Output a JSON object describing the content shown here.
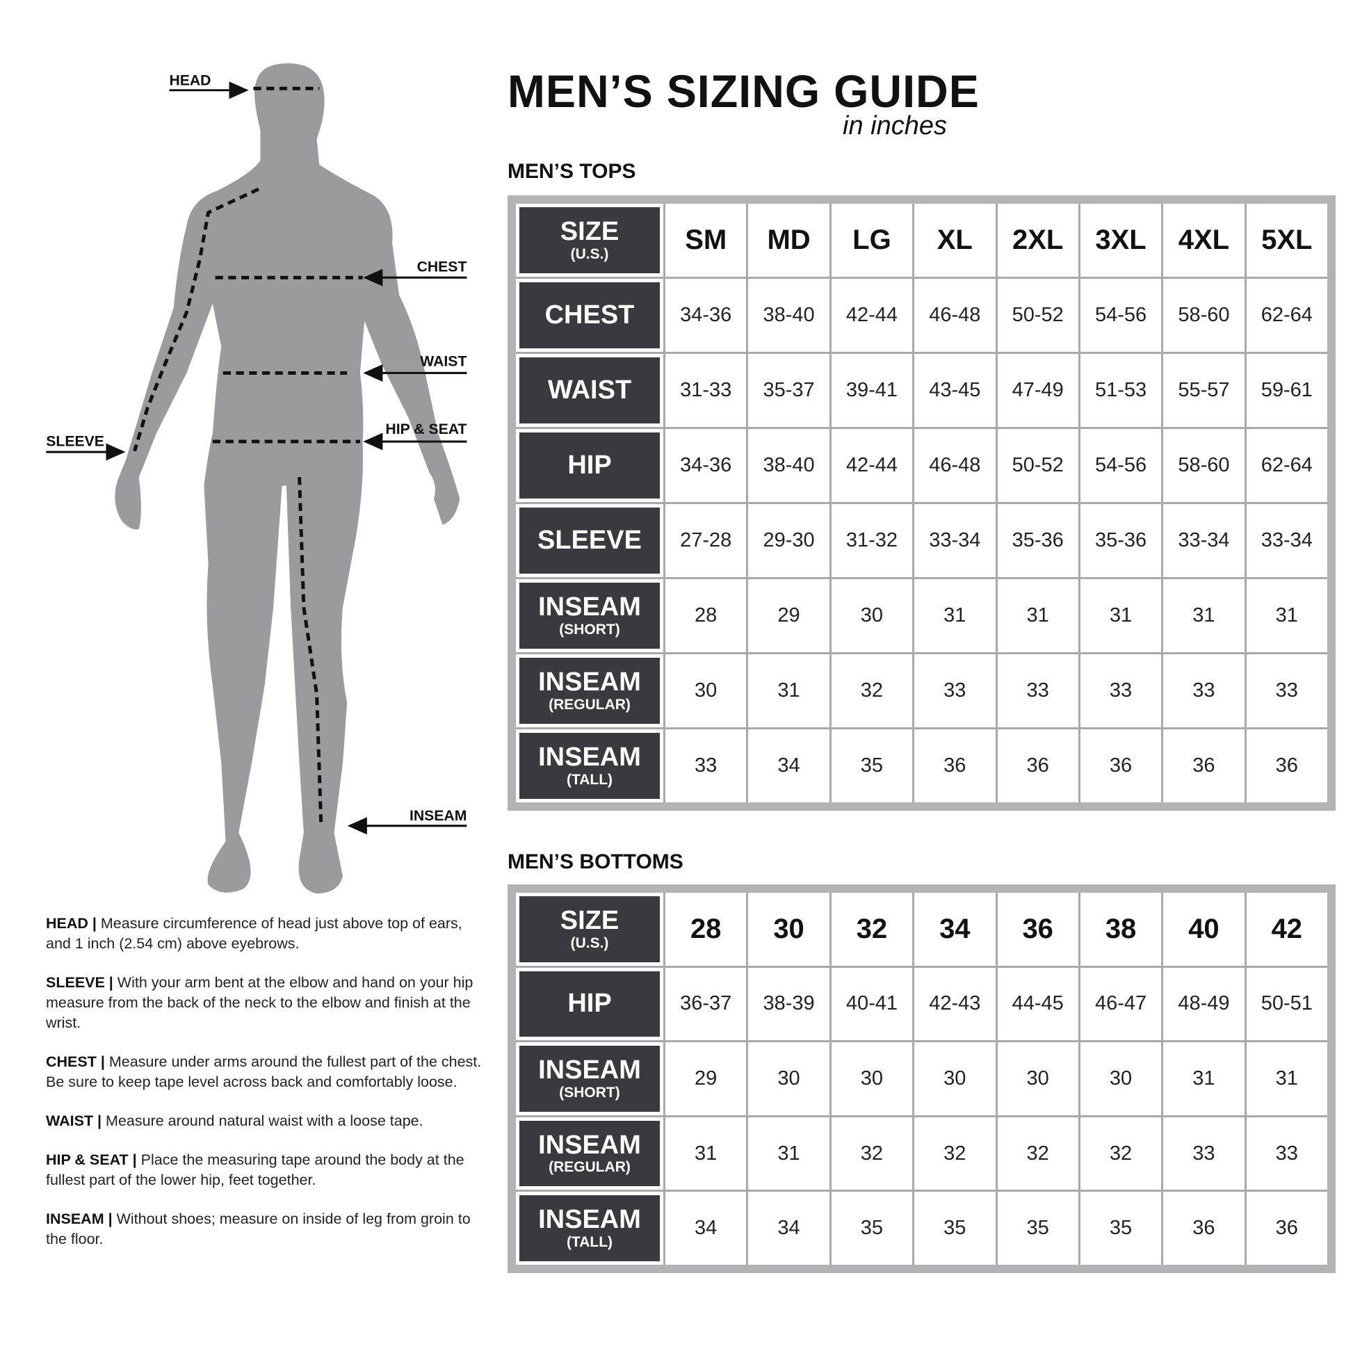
{
  "title": "MEN’S SIZING GUIDE",
  "subtitle": "in inches",
  "figure": {
    "labels": {
      "head": "HEAD",
      "chest": "CHEST",
      "waist": "WAIST",
      "hip": "HIP & SEAT",
      "sleeve": "SLEEVE",
      "inseam": "INSEAM"
    },
    "body_color": "#9b9b9e"
  },
  "tops": {
    "heading": "MEN’S TOPS",
    "size_label": {
      "main": "SIZE",
      "sub": "(U.S.)"
    },
    "sizes": [
      "SM",
      "MD",
      "LG",
      "XL",
      "2XL",
      "3XL",
      "4XL",
      "5XL"
    ],
    "rows": [
      {
        "main": "CHEST",
        "sub": "",
        "values": [
          "34-36",
          "38-40",
          "42-44",
          "46-48",
          "50-52",
          "54-56",
          "58-60",
          "62-64"
        ]
      },
      {
        "main": "WAIST",
        "sub": "",
        "values": [
          "31-33",
          "35-37",
          "39-41",
          "43-45",
          "47-49",
          "51-53",
          "55-57",
          "59-61"
        ]
      },
      {
        "main": "HIP",
        "sub": "",
        "values": [
          "34-36",
          "38-40",
          "42-44",
          "46-48",
          "50-52",
          "54-56",
          "58-60",
          "62-64"
        ]
      },
      {
        "main": "SLEEVE",
        "sub": "",
        "values": [
          "27-28",
          "29-30",
          "31-32",
          "33-34",
          "35-36",
          "35-36",
          "33-34",
          "33-34"
        ]
      },
      {
        "main": "INSEAM",
        "sub": "(SHORT)",
        "values": [
          "28",
          "29",
          "30",
          "31",
          "31",
          "31",
          "31",
          "31"
        ]
      },
      {
        "main": "INSEAM",
        "sub": "(REGULAR)",
        "values": [
          "30",
          "31",
          "32",
          "33",
          "33",
          "33",
          "33",
          "33"
        ]
      },
      {
        "main": "INSEAM",
        "sub": "(TALL)",
        "values": [
          "33",
          "34",
          "35",
          "36",
          "36",
          "36",
          "36",
          "36"
        ]
      }
    ]
  },
  "bottoms": {
    "heading": "MEN’S BOTTOMS",
    "size_label": {
      "main": "SIZE",
      "sub": "(U.S.)"
    },
    "sizes": [
      "28",
      "30",
      "32",
      "34",
      "36",
      "38",
      "40",
      "42"
    ],
    "rows": [
      {
        "main": "HIP",
        "sub": "",
        "values": [
          "36-37",
          "38-39",
          "40-41",
          "42-43",
          "44-45",
          "46-47",
          "48-49",
          "50-51"
        ]
      },
      {
        "main": "INSEAM",
        "sub": "(SHORT)",
        "values": [
          "29",
          "30",
          "30",
          "30",
          "30",
          "30",
          "31",
          "31"
        ]
      },
      {
        "main": "INSEAM",
        "sub": "(REGULAR)",
        "values": [
          "31",
          "31",
          "32",
          "32",
          "32",
          "32",
          "33",
          "33"
        ]
      },
      {
        "main": "INSEAM",
        "sub": "(TALL)",
        "values": [
          "34",
          "34",
          "35",
          "35",
          "35",
          "35",
          "36",
          "36"
        ]
      }
    ]
  },
  "notes": [
    {
      "term": "HEAD |",
      "text": " Measure circumference of head just above top of ears, and 1 inch (2.54 cm) above eyebrows."
    },
    {
      "term": "SLEEVE |",
      "text": " With your arm bent at the elbow and hand on your hip measure from the back of the neck to the elbow and finish at the wrist."
    },
    {
      "term": "CHEST |",
      "text": " Measure under arms around the fullest part of the chest. Be sure to keep tape level across back and comfortably loose."
    },
    {
      "term": "WAIST |",
      "text": " Measure around natural waist with a loose tape."
    },
    {
      "term": "HIP & SEAT |",
      "text": " Place the measuring tape around the body at the fullest part of the lower hip, feet together."
    },
    {
      "term": "INSEAM |",
      "text": " Without shoes; measure on inside of leg from groin to the floor."
    }
  ]
}
